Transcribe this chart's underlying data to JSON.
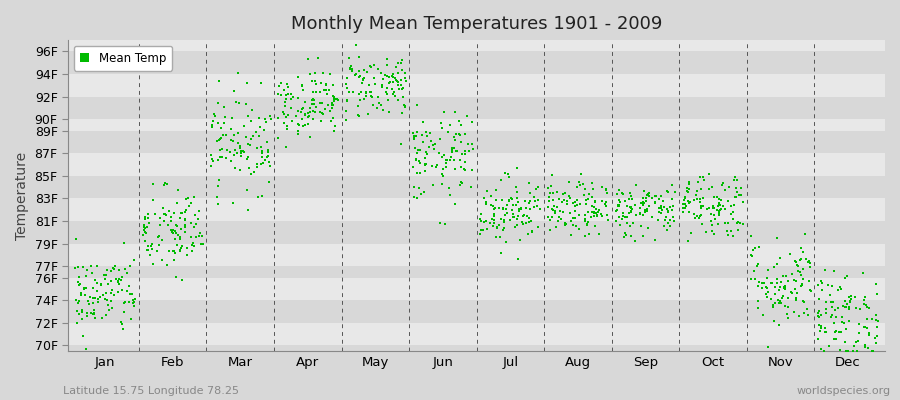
{
  "title": "Monthly Mean Temperatures 1901 - 2009",
  "ylabel": "Temperature",
  "xlabel": "",
  "subtitle_left": "Latitude 15.75 Longitude 78.25",
  "subtitle_right": "worldspecies.org",
  "legend_label": "Mean Temp",
  "ytick_labels": [
    "70F",
    "72F",
    "74F",
    "76F",
    "77F",
    "79F",
    "81F",
    "83F",
    "85F",
    "87F",
    "89F",
    "90F",
    "92F",
    "94F",
    "96F"
  ],
  "ytick_values": [
    70,
    72,
    74,
    76,
    77,
    79,
    81,
    83,
    85,
    87,
    89,
    90,
    92,
    94,
    96
  ],
  "ylim": [
    69.5,
    97.0
  ],
  "months": [
    "Jan",
    "Feb",
    "Mar",
    "Apr",
    "May",
    "Jun",
    "Jul",
    "Aug",
    "Sep",
    "Oct",
    "Nov",
    "Dec"
  ],
  "dot_color": "#00bb00",
  "bg_color": "#d8d8d8",
  "plot_bg_color": "#d8d8d8",
  "band_color_light": "#e8e8e8",
  "band_color_dark": "#d8d8d8",
  "n_years": 109,
  "monthly_means": [
    74.5,
    80.0,
    88.0,
    91.5,
    93.0,
    86.5,
    82.0,
    82.0,
    82.0,
    82.5,
    75.5,
    72.5
  ],
  "monthly_stds": [
    1.8,
    2.0,
    2.2,
    1.5,
    1.5,
    2.0,
    1.5,
    1.2,
    1.2,
    1.5,
    2.0,
    2.0
  ]
}
